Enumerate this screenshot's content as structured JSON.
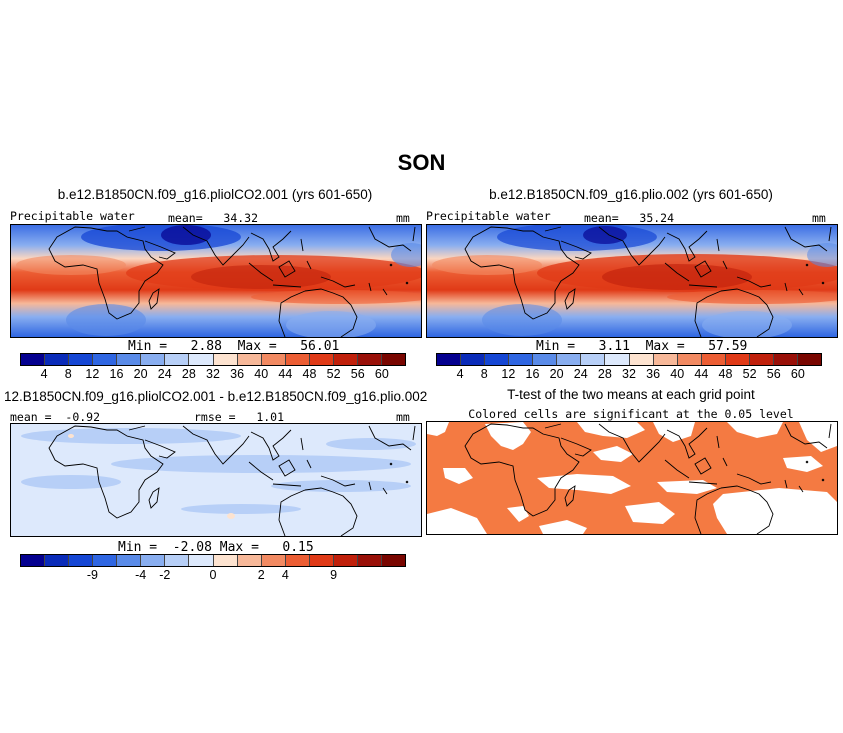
{
  "page_title": "SON",
  "panels": {
    "p1": {
      "title": "b.e12.B1850CN.f09_g16.pliolCO2.001 (yrs 601-650)",
      "variable": "Precipitable water",
      "mean_label": "mean=",
      "mean": "34.32",
      "units": "mm",
      "min_label": "Min =",
      "min": "2.88",
      "max_label": "Max =",
      "max": "56.01"
    },
    "p2": {
      "title": "b.e12.B1850CN.f09_g16.plio.002 (yrs 601-650)",
      "variable": "Precipitable water",
      "mean_label": "mean=",
      "mean": "35.24",
      "units": "mm",
      "min_label": "Min =",
      "min": "3.11",
      "max_label": "Max =",
      "max": "57.59"
    },
    "p3": {
      "title": "12.B1850CN.f09_g16.pliolCO2.001 - b.e12.B1850CN.f09_g16.plio.002",
      "mean_label": "mean =",
      "mean": "-0.92",
      "rmse_label": "rmse =",
      "rmse": "1.01",
      "units": "mm",
      "min_label": "Min =",
      "min": "-2.08",
      "max_label": "Max =",
      "max": "0.15"
    },
    "p4": {
      "title": "T-test of the two means at each grid point",
      "subtitle": "Colored cells are significant at the 0.05 level",
      "significant_color": "#f47a42"
    }
  },
  "colorbars": {
    "absolute": {
      "colors": [
        "#04008f",
        "#0a2bb9",
        "#1546d4",
        "#2f66e2",
        "#5a8be8",
        "#89aef0",
        "#b7cff7",
        "#dde9fc",
        "#fde3d0",
        "#f7b899",
        "#f28a62",
        "#ec5e34",
        "#e03a17",
        "#c0200b",
        "#991008",
        "#790600"
      ],
      "ticks": [
        "4",
        "8",
        "12",
        "16",
        "20",
        "24",
        "28",
        "32",
        "36",
        "40",
        "44",
        "48",
        "52",
        "56",
        "60"
      ]
    },
    "difference": {
      "colors": [
        "#04008f",
        "#0a2bb9",
        "#1546d4",
        "#2f66e2",
        "#5a8be8",
        "#89aef0",
        "#b7cff7",
        "#dde9fc",
        "#fde3d0",
        "#f7b899",
        "#f28a62",
        "#ec5e34",
        "#e03a17",
        "#c0200b",
        "#991008",
        "#790600"
      ],
      "ticks": [
        {
          "label": "-9",
          "pos": 3
        },
        {
          "label": "-4",
          "pos": 5
        },
        {
          "label": "-2",
          "pos": 6
        },
        {
          "label": "0",
          "pos": 8
        },
        {
          "label": "2",
          "pos": 10
        },
        {
          "label": "4",
          "pos": 11
        },
        {
          "label": "9",
          "pos": 13
        }
      ]
    }
  }
}
